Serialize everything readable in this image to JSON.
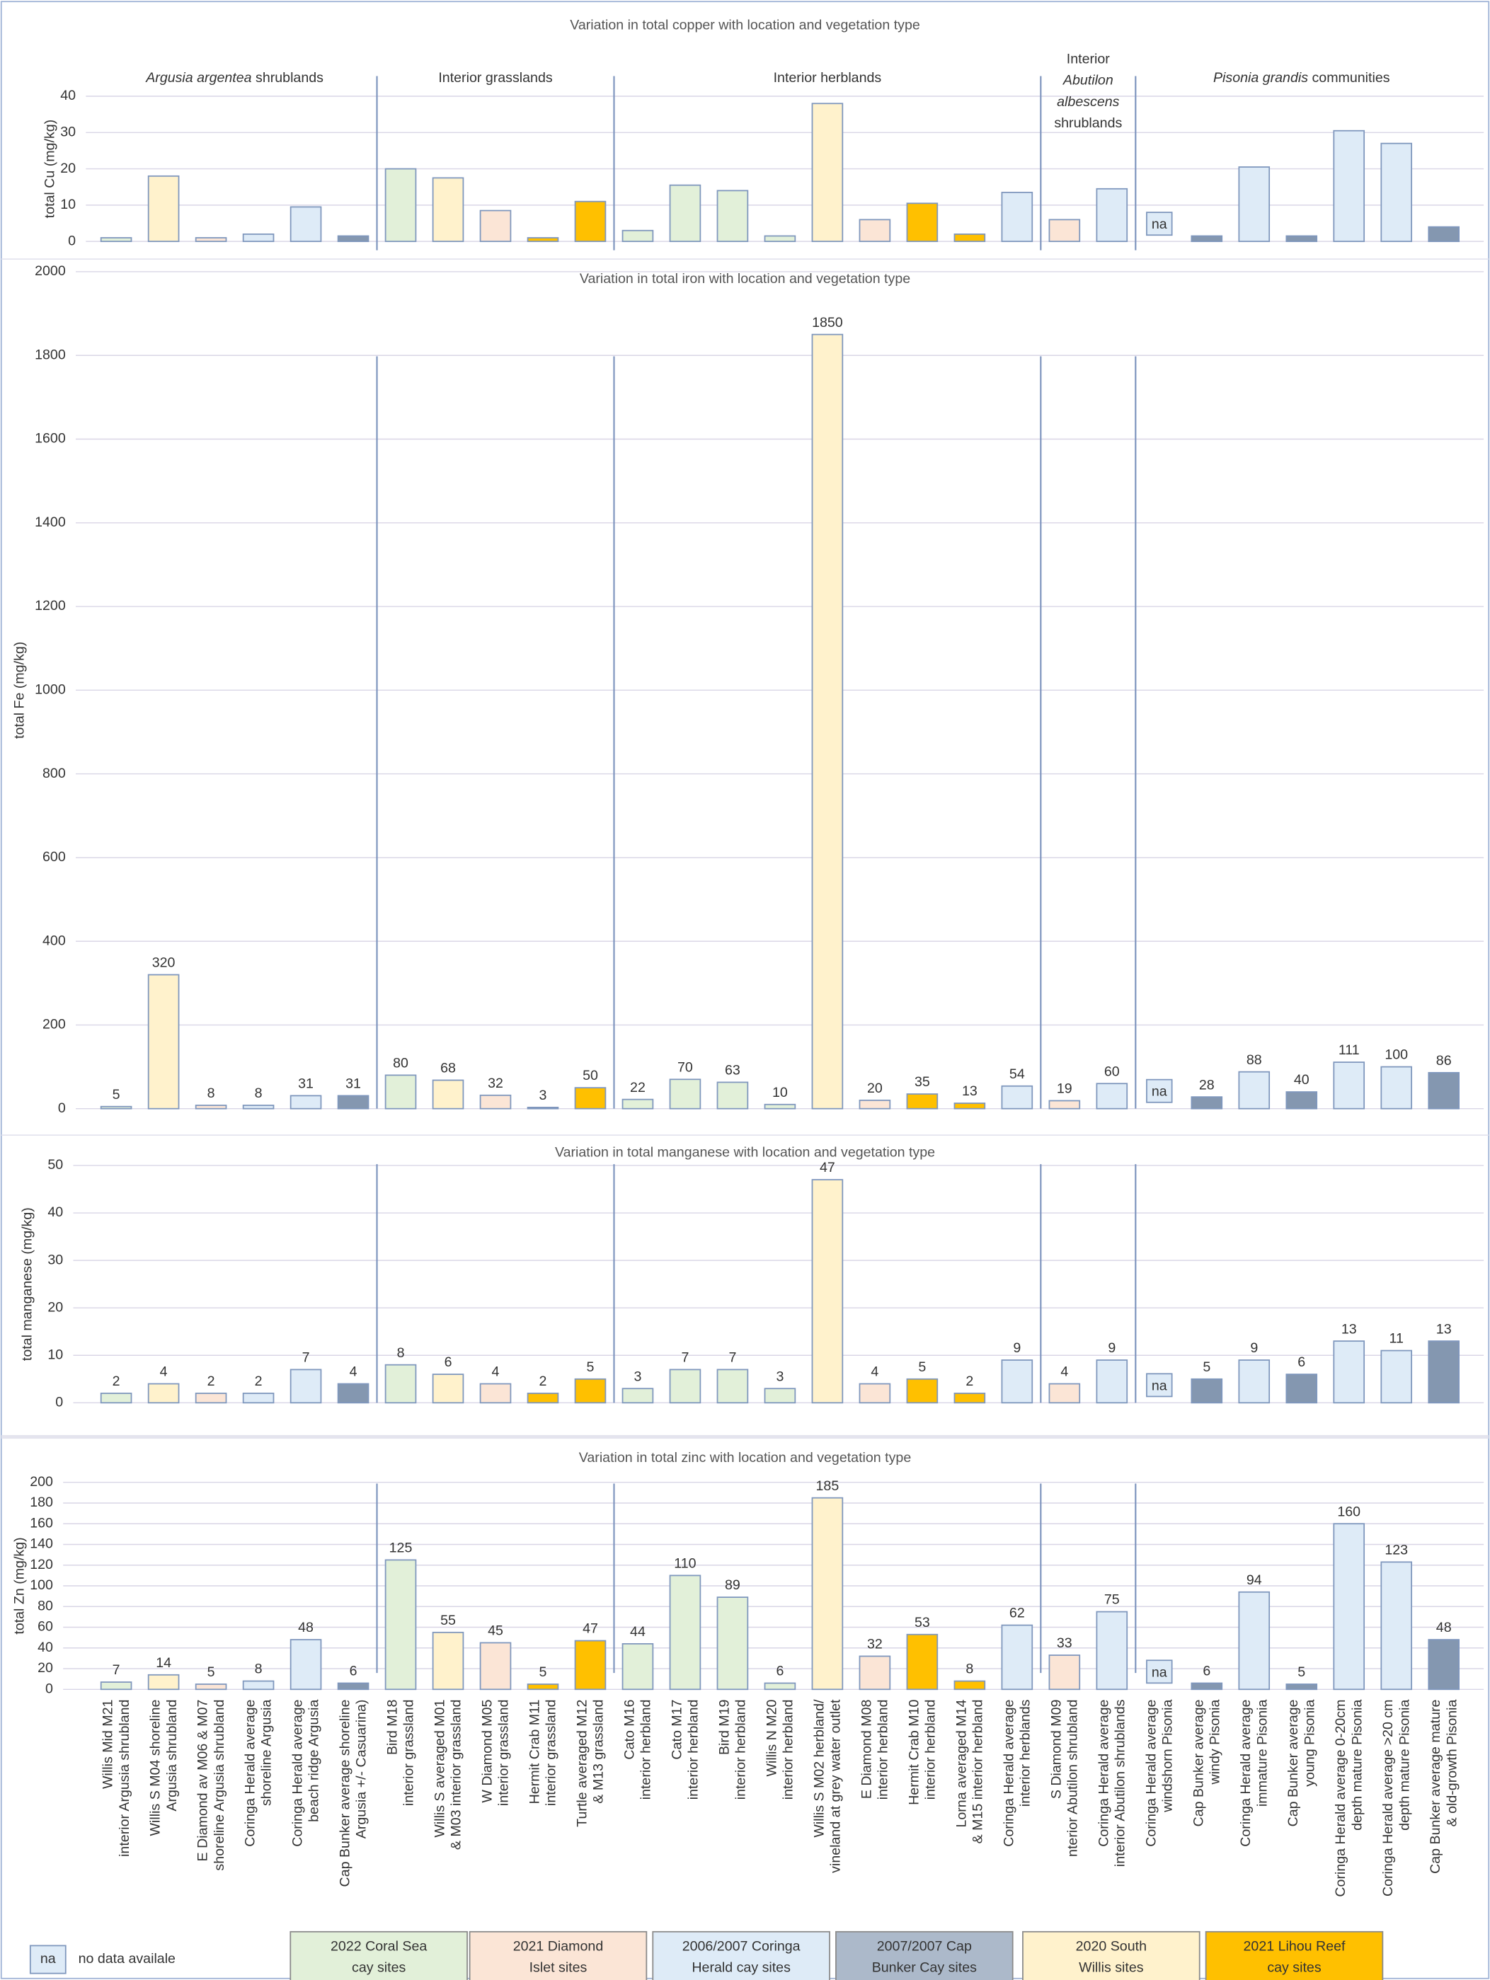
{
  "na_label": "na",
  "bar_colors": [
    "#e2f0d9",
    "#fff2cc",
    "#fbe5d6",
    "#deebf7",
    "#deebf7",
    "#8497b0",
    "#e2f0d9",
    "#fff2cc",
    "#fbe5d6",
    "#ffc000",
    "#ffc000",
    "#e2f0d9",
    "#e2f0d9",
    "#e2f0d9",
    "#e2f0d9",
    "#fff2cc",
    "#fbe5d6",
    "#ffc000",
    "#ffc000",
    "#deebf7",
    "#fbe5d6",
    "#deebf7",
    "#deebf7",
    "#8497b0",
    "#deebf7",
    "#8497b0",
    "#deebf7",
    "#deebf7",
    "#8497b0"
  ],
  "legend": {
    "na_box": "na",
    "na_text": "no data availale",
    "items": [
      {
        "lines": [
          "2022 Coral Sea",
          "cay sites"
        ],
        "color": "#e2f0d9"
      },
      {
        "lines": [
          "2021 Diamond",
          "Islet sites"
        ],
        "color": "#fbe5d6"
      },
      {
        "lines": [
          "2006/2007 Coringa",
          "Herald cay sites"
        ],
        "color": "#deebf7"
      },
      {
        "lines": [
          "2007/2007 Cap",
          "Bunker Cay sites"
        ],
        "color": "#acb9ca"
      },
      {
        "lines": [
          "2020 South",
          "Willis sites"
        ],
        "color": "#fff2cc"
      },
      {
        "lines": [
          "2021 Lihou Reef",
          "cay sites"
        ],
        "color": "#ffc000"
      }
    ]
  },
  "chart_data": [
    {
      "type": "bar",
      "title": "Variation in total copper with location and vegetation type",
      "y_label": "total Cu (mg/kg)",
      "group_labels": [
        [
          [
            {
              "text": "Argusia argentea",
              "italic": true
            },
            {
              "text": " shrublands",
              "italic": false
            }
          ]
        ],
        [
          [
            {
              "text": "Interior grasslands",
              "italic": false
            }
          ]
        ],
        [
          [
            {
              "text": "Interior herblands",
              "italic": false
            }
          ]
        ],
        [
          [
            {
              "text": "Interior",
              "italic": false
            }
          ],
          [
            {
              "text": "Abutilon",
              "italic": true
            }
          ],
          [
            {
              "text": "albescens",
              "italic": true
            }
          ],
          [
            {
              "text": "shrublands",
              "italic": false
            }
          ]
        ],
        [
          [
            {
              "text": "Pisonia grandis",
              "italic": true
            },
            {
              "text": " communities",
              "italic": false
            }
          ]
        ]
      ],
      "values": [
        1,
        18,
        1,
        2,
        9.5,
        1.5,
        20,
        17.5,
        8.5,
        1,
        11,
        3,
        15.5,
        14,
        1.5,
        38,
        6,
        10.5,
        2,
        13.5,
        6,
        14.5,
        null,
        1.5,
        20.5,
        1.5,
        30.5,
        27,
        4
      ],
      "ylim": [
        0,
        40
      ],
      "yticks": [
        0,
        10,
        20,
        30,
        40
      ],
      "grid": true,
      "data_labels": false
    },
    {
      "type": "bar",
      "title": "Variation in total iron with location and vegetation type",
      "y_label": "total Fe (mg/kg)",
      "values": [
        5,
        320,
        8,
        8,
        31,
        31,
        80,
        68,
        32,
        3,
        50,
        22,
        70,
        63,
        10,
        1850,
        20,
        35,
        13,
        54,
        19,
        60,
        null,
        28,
        88,
        40,
        111,
        100,
        86
      ],
      "ylim": [
        0,
        2000
      ],
      "yticks": [
        0,
        200,
        400,
        600,
        800,
        1000,
        1200,
        1400,
        1600,
        1800,
        2000
      ],
      "grid": true,
      "data_labels": true
    },
    {
      "type": "bar",
      "title": "Variation in total manganese with location and vegetation type",
      "y_label": "total manganese (mg/kg)",
      "values": [
        2,
        4,
        2,
        2,
        7,
        4,
        8,
        6,
        4,
        2,
        5,
        3,
        7,
        7,
        3,
        47,
        4,
        5,
        2,
        9,
        4,
        9,
        null,
        5,
        9,
        6,
        13,
        11,
        13
      ],
      "ylim": [
        0,
        50
      ],
      "yticks": [
        0,
        10,
        20,
        30,
        40,
        50
      ],
      "grid": true,
      "data_labels": true
    },
    {
      "type": "bar",
      "title": "Variation in total zinc with location and vegetation type",
      "y_label": "total Zn (mg/kg)",
      "values": [
        7,
        14,
        5,
        8,
        48,
        6,
        125,
        55,
        45,
        5,
        47,
        44,
        110,
        89,
        6,
        185,
        32,
        53,
        8,
        62,
        33,
        75,
        null,
        6,
        94,
        5,
        160,
        123,
        48
      ],
      "ylim": [
        0,
        200
      ],
      "yticks": [
        0,
        20,
        40,
        60,
        80,
        100,
        120,
        140,
        160,
        180,
        200
      ],
      "grid": true,
      "data_labels": true,
      "categories": [
        [
          "Willis Mid M21",
          "interior Argusia shrubland"
        ],
        [
          "Willis S M04 shoreline",
          "Argusia shrubland"
        ],
        [
          "E Diamond av M06 & M07",
          "shoreline Argusia shrubland"
        ],
        [
          "Coringa Herald average",
          "shoreline Argusia"
        ],
        [
          "Coringa Herald average",
          "beach ridge Argusia"
        ],
        [
          "Cap Bunker average shoreline",
          "Argusia +/- Casuarina)"
        ],
        [
          "Bird M18",
          "interior grassland"
        ],
        [
          "Willis S averaged M01",
          "& M03 interior grassland"
        ],
        [
          "W Diamond M05",
          "interior grassland"
        ],
        [
          "Hermit Crab M11",
          "interior grassland"
        ],
        [
          "Turtle averaged M12",
          "& M13 grassland"
        ],
        [
          "Cato M16",
          "interior herbland"
        ],
        [
          "Cato M17",
          "interior herbland"
        ],
        [
          "Bird M19",
          "interior herbland"
        ],
        [
          "Willis N M20",
          "interior herbland"
        ],
        [
          "Willis S M02 herbland/",
          "vineland at grey water outlet"
        ],
        [
          "E Diamond M08",
          "interior herbland"
        ],
        [
          "Hermit Crab M10",
          "interior herbland"
        ],
        [
          "Lorna averaged M14",
          "& M15 interior herbland"
        ],
        [
          "Coringa Herald average",
          "interior herblands"
        ],
        [
          "S Diamond M09",
          "nterior Abutilon shrubland"
        ],
        [
          "Coringa Herald average",
          "interior Abutilon shrublands"
        ],
        [
          "Coringa Herald average",
          "windshorn Pisonia"
        ],
        [
          "Cap Bunker average",
          "windy Pisonia"
        ],
        [
          "Coringa Herald average",
          "immature Pisonia"
        ],
        [
          "Cap Bunker average",
          "young Pisonia"
        ],
        [
          "Coringa Herald average 0-20cm",
          "depth mature Pisonia"
        ],
        [
          "Coringa Herald average >20 cm",
          "depth mature Pisonia"
        ],
        [
          "Cap Bunker average mature",
          "& old-growth Pisonia"
        ]
      ]
    }
  ]
}
